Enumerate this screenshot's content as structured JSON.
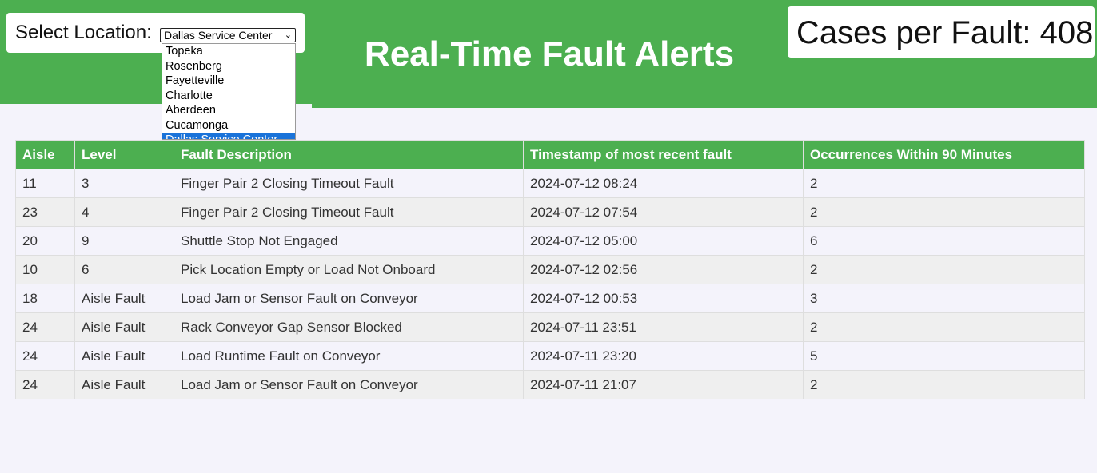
{
  "header": {
    "title": "Real-Time Fault Alerts"
  },
  "location": {
    "label": "Select Location:",
    "selected": "Dallas Service Center",
    "options": [
      "Topeka",
      "Rosenberg",
      "Fayetteville",
      "Charlotte",
      "Aberdeen",
      "Cucamonga",
      "Dallas Service Center"
    ]
  },
  "cases": {
    "text": "Cases per Fault: 408"
  },
  "table": {
    "columns": [
      "Aisle",
      "Level",
      "Fault Description",
      "Timestamp of most recent fault",
      "Occurrences Within 90 Minutes"
    ],
    "rows": [
      [
        "11",
        "3",
        "Finger Pair 2 Closing Timeout Fault",
        "2024-07-12 08:24",
        "2"
      ],
      [
        "23",
        "4",
        "Finger Pair 2 Closing Timeout Fault",
        "2024-07-12 07:54",
        "2"
      ],
      [
        "20",
        "9",
        "Shuttle Stop Not Engaged",
        "2024-07-12 05:00",
        "6"
      ],
      [
        "10",
        "6",
        "Pick Location Empty or Load Not Onboard",
        "2024-07-12 02:56",
        "2"
      ],
      [
        "18",
        "Aisle Fault",
        "Load Jam or Sensor Fault on Conveyor",
        "2024-07-12 00:53",
        "3"
      ],
      [
        "24",
        "Aisle Fault",
        "Rack Conveyor Gap Sensor Blocked",
        "2024-07-11 23:51",
        "2"
      ],
      [
        "24",
        "Aisle Fault",
        "Load Runtime Fault on Conveyor",
        "2024-07-11 23:20",
        "5"
      ],
      [
        "24",
        "Aisle Fault",
        "Load Jam or Sensor Fault on Conveyor",
        "2024-07-11 21:07",
        "2"
      ]
    ]
  },
  "colors": {
    "header_green": "#4caf50",
    "page_background": "#f4f3fb",
    "selected_option": "#1a73d9"
  }
}
